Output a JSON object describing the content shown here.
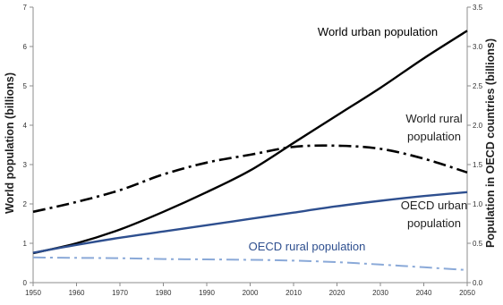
{
  "chart_data": {
    "type": "line",
    "title": "",
    "xlabel": "",
    "ylabel_left": "World population (billions)",
    "ylabel_right": "Population in OECD countries (billions)",
    "xlim": [
      1950,
      2050
    ],
    "ylim_left": [
      0,
      7
    ],
    "ylim_right": [
      0,
      3.5
    ],
    "x_ticks": [
      "1950",
      "1960",
      "1970",
      "1980",
      "1990",
      "2000",
      "2010",
      "2020",
      "2030",
      "2040",
      "2050"
    ],
    "y_left_ticks": [
      "0",
      "1",
      "2",
      "3",
      "4",
      "5",
      "6",
      "7"
    ],
    "y_right_ticks": [
      "0.0",
      "0.5",
      "1.0",
      "1.5",
      "2.0",
      "2.5",
      "3.0",
      "3.5"
    ],
    "grid": false,
    "legend": "none",
    "x": [
      1950,
      1960,
      1970,
      1980,
      1990,
      2000,
      2010,
      2020,
      2030,
      2040,
      2050
    ],
    "series": [
      {
        "name": "World urban population",
        "axis": "left",
        "color": "#000000",
        "dash": "solid",
        "label_lines": [
          "World urban population"
        ],
        "values": [
          0.75,
          1.0,
          1.35,
          1.8,
          2.3,
          2.85,
          3.55,
          4.25,
          4.95,
          5.7,
          6.4
        ]
      },
      {
        "name": "World rural population",
        "axis": "left",
        "color": "#000000",
        "dash": "dashdot",
        "label_lines": [
          "World rural",
          "population"
        ],
        "values": [
          1.8,
          2.05,
          2.35,
          2.75,
          3.05,
          3.25,
          3.45,
          3.48,
          3.4,
          3.15,
          2.8
        ]
      },
      {
        "name": "OECD urban population",
        "axis": "right",
        "color": "#2e4f8f",
        "dash": "solid",
        "label_lines": [
          "OECD urban",
          "population"
        ],
        "values": [
          0.38,
          0.48,
          0.57,
          0.65,
          0.73,
          0.81,
          0.89,
          0.97,
          1.04,
          1.1,
          1.15
        ]
      },
      {
        "name": "OECD rural population",
        "axis": "right",
        "color": "#8aa9d8",
        "dash": "dashdot",
        "label_lines": [
          "OECD rural population"
        ],
        "values": [
          0.32,
          0.315,
          0.31,
          0.3,
          0.295,
          0.29,
          0.28,
          0.26,
          0.23,
          0.195,
          0.16
        ]
      }
    ]
  }
}
